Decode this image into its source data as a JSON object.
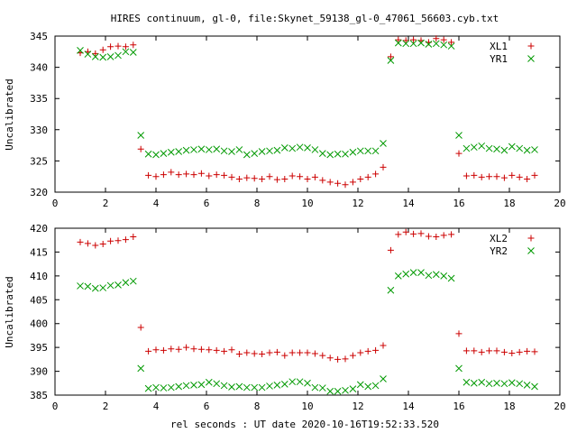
{
  "title": "HIRES continuum, gl-0, file:Skynet_59138_gl-0_47061_56603.cyb.txt",
  "xlabel": "rel seconds : UT date 2020-10-16T19:52:33.520",
  "colors": {
    "series1": "#cc0000",
    "series2": "#009900",
    "axis": "#000000"
  },
  "chart_data": [
    {
      "type": "scatter",
      "ylabel": "Uncalibrated",
      "xlim": [
        0,
        20
      ],
      "ylim": [
        320,
        345
      ],
      "xticks": [
        0,
        2,
        4,
        6,
        8,
        10,
        12,
        14,
        16,
        18,
        20
      ],
      "yticks": [
        320,
        325,
        330,
        335,
        340,
        345
      ],
      "grid": false,
      "legend_position": "top-right",
      "series": [
        {
          "name": "XL1",
          "marker": "+",
          "x": [
            1.0,
            1.3,
            1.6,
            1.9,
            2.2,
            2.5,
            2.8,
            3.1,
            3.4,
            3.7,
            4.0,
            4.3,
            4.6,
            4.9,
            5.2,
            5.5,
            5.8,
            6.1,
            6.4,
            6.7,
            7.0,
            7.3,
            7.6,
            7.9,
            8.2,
            8.5,
            8.8,
            9.1,
            9.4,
            9.7,
            10.0,
            10.3,
            10.6,
            10.9,
            11.2,
            11.5,
            11.8,
            12.1,
            12.4,
            12.7,
            13.0,
            13.3,
            13.6,
            13.9,
            14.2,
            14.5,
            14.8,
            15.1,
            15.4,
            15.7,
            16.0,
            16.3,
            16.6,
            16.9,
            17.2,
            17.5,
            17.8,
            18.1,
            18.4,
            18.7,
            19.0
          ],
          "y": [
            342.3,
            342.5,
            342.2,
            342.8,
            343.3,
            343.4,
            343.3,
            343.6,
            326.9,
            322.7,
            322.5,
            322.8,
            323.2,
            322.8,
            322.9,
            322.8,
            323.0,
            322.6,
            322.8,
            322.7,
            322.4,
            322.1,
            322.3,
            322.2,
            322.1,
            322.5,
            322.0,
            322.1,
            322.6,
            322.5,
            322.1,
            322.4,
            321.9,
            321.6,
            321.4,
            321.2,
            321.6,
            322.1,
            322.4,
            322.9,
            324.0,
            341.7,
            344.4,
            344.3,
            344.4,
            344.3,
            344.0,
            344.6,
            344.4,
            344.0,
            326.2,
            322.6,
            322.7,
            322.4,
            322.5,
            322.5,
            322.3,
            322.7,
            322.4,
            322.1,
            322.7
          ]
        },
        {
          "name": "YR1",
          "marker": "x",
          "x": [
            1.0,
            1.3,
            1.6,
            1.9,
            2.2,
            2.5,
            2.8,
            3.1,
            3.4,
            3.7,
            4.0,
            4.3,
            4.6,
            4.9,
            5.2,
            5.5,
            5.8,
            6.1,
            6.4,
            6.7,
            7.0,
            7.3,
            7.6,
            7.9,
            8.2,
            8.5,
            8.8,
            9.1,
            9.4,
            9.7,
            10.0,
            10.3,
            10.6,
            10.9,
            11.2,
            11.5,
            11.8,
            12.1,
            12.4,
            12.7,
            13.0,
            13.3,
            13.6,
            13.9,
            14.2,
            14.5,
            14.8,
            15.1,
            15.4,
            15.7,
            16.0,
            16.3,
            16.6,
            16.9,
            17.2,
            17.5,
            17.8,
            18.1,
            18.4,
            18.7,
            19.0
          ],
          "y": [
            342.7,
            342.1,
            341.7,
            341.6,
            341.7,
            341.9,
            342.5,
            342.4,
            329.1,
            326.1,
            326.0,
            326.2,
            326.4,
            326.5,
            326.7,
            326.8,
            326.9,
            326.8,
            326.9,
            326.6,
            326.5,
            326.8,
            326.0,
            326.2,
            326.5,
            326.6,
            326.7,
            327.1,
            327.0,
            327.2,
            327.1,
            326.8,
            326.2,
            326.0,
            326.1,
            326.1,
            326.4,
            326.6,
            326.6,
            326.6,
            327.8,
            341.1,
            343.9,
            343.8,
            343.8,
            343.9,
            343.7,
            343.8,
            343.6,
            343.4,
            329.1,
            327.0,
            327.2,
            327.4,
            327.0,
            326.9,
            326.7,
            327.3,
            327.0,
            326.7,
            326.8
          ]
        }
      ]
    },
    {
      "type": "scatter",
      "ylabel": "Uncalibrated",
      "xlabel": "rel seconds : UT date 2020-10-16T19:52:33.520",
      "xlim": [
        0,
        20
      ],
      "ylim": [
        385,
        420
      ],
      "xticks": [
        0,
        2,
        4,
        6,
        8,
        10,
        12,
        14,
        16,
        18,
        20
      ],
      "yticks": [
        385,
        390,
        395,
        400,
        405,
        410,
        415,
        420
      ],
      "grid": false,
      "legend_position": "top-right",
      "series": [
        {
          "name": "XL2",
          "marker": "+",
          "x": [
            1.0,
            1.3,
            1.6,
            1.9,
            2.2,
            2.5,
            2.8,
            3.1,
            3.4,
            3.7,
            4.0,
            4.3,
            4.6,
            4.9,
            5.2,
            5.5,
            5.8,
            6.1,
            6.4,
            6.7,
            7.0,
            7.3,
            7.6,
            7.9,
            8.2,
            8.5,
            8.8,
            9.1,
            9.4,
            9.7,
            10.0,
            10.3,
            10.6,
            10.9,
            11.2,
            11.5,
            11.8,
            12.1,
            12.4,
            12.7,
            13.0,
            13.3,
            13.6,
            13.9,
            14.2,
            14.5,
            14.8,
            15.1,
            15.4,
            15.7,
            16.0,
            16.3,
            16.6,
            16.9,
            17.2,
            17.5,
            17.8,
            18.1,
            18.4,
            18.7,
            19.0
          ],
          "y": [
            417.1,
            416.8,
            416.4,
            416.7,
            417.3,
            417.4,
            417.6,
            418.2,
            399.2,
            394.2,
            394.5,
            394.4,
            394.7,
            394.6,
            395.0,
            394.7,
            394.6,
            394.5,
            394.4,
            394.2,
            394.5,
            393.6,
            393.9,
            393.7,
            393.6,
            393.9,
            394.0,
            393.3,
            393.9,
            393.9,
            393.9,
            393.7,
            393.3,
            392.8,
            392.5,
            392.6,
            393.3,
            393.9,
            394.2,
            394.4,
            395.4,
            415.4,
            418.7,
            419.2,
            418.8,
            418.9,
            418.3,
            418.2,
            418.5,
            418.7,
            397.9,
            394.3,
            394.3,
            394.0,
            394.3,
            394.3,
            394.0,
            393.8,
            394.0,
            394.2,
            394.1
          ]
        },
        {
          "name": "YR2",
          "marker": "x",
          "x": [
            1.0,
            1.3,
            1.6,
            1.9,
            2.2,
            2.5,
            2.8,
            3.1,
            3.4,
            3.7,
            4.0,
            4.3,
            4.6,
            4.9,
            5.2,
            5.5,
            5.8,
            6.1,
            6.4,
            6.7,
            7.0,
            7.3,
            7.6,
            7.9,
            8.2,
            8.5,
            8.8,
            9.1,
            9.4,
            9.7,
            10.0,
            10.3,
            10.6,
            10.9,
            11.2,
            11.5,
            11.8,
            12.1,
            12.4,
            12.7,
            13.0,
            13.3,
            13.6,
            13.9,
            14.2,
            14.5,
            14.8,
            15.1,
            15.4,
            15.7,
            16.0,
            16.3,
            16.6,
            16.9,
            17.2,
            17.5,
            17.8,
            18.1,
            18.4,
            18.7,
            19.0
          ],
          "y": [
            407.9,
            407.8,
            407.4,
            407.5,
            408.0,
            408.1,
            408.6,
            408.9,
            390.6,
            386.4,
            386.6,
            386.5,
            386.6,
            386.8,
            387.0,
            387.1,
            387.2,
            387.7,
            387.4,
            387.0,
            386.7,
            386.8,
            386.6,
            386.6,
            386.6,
            386.9,
            387.1,
            387.3,
            387.8,
            387.8,
            387.5,
            386.6,
            386.5,
            385.8,
            385.8,
            386.0,
            386.3,
            387.2,
            386.8,
            387.0,
            388.4,
            407.0,
            410.0,
            410.4,
            410.7,
            410.7,
            410.1,
            410.3,
            410.0,
            409.5,
            390.6,
            387.7,
            387.5,
            387.7,
            387.4,
            387.5,
            387.4,
            387.6,
            387.4,
            387.1,
            386.8
          ]
        }
      ]
    }
  ]
}
